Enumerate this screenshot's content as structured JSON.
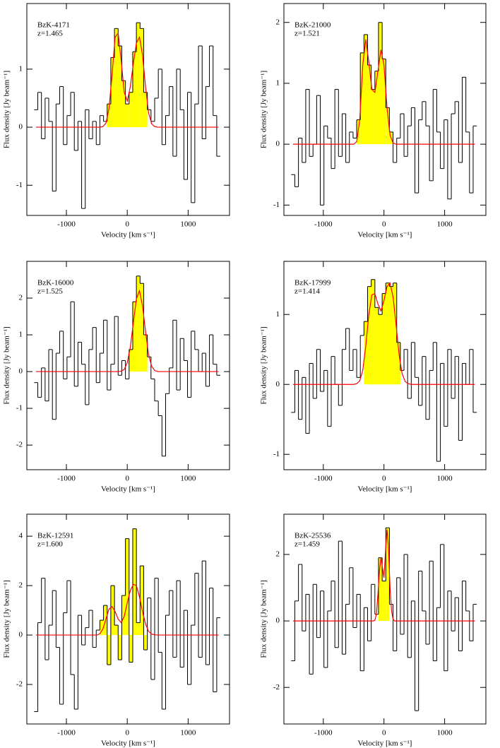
{
  "chart_data": [
    {
      "type": "step",
      "title": "BzK-4171",
      "subtitle": "z=1.465",
      "xlabel": "Velocity [km s⁻¹]",
      "ylabel": "Flux density [Jy beam⁻¹]",
      "color": "#000000",
      "xlim": [
        -1650,
        1680
      ],
      "xticks": [
        -1000,
        0,
        1000
      ],
      "ylim": [
        -1.52,
        2.13
      ],
      "yticks": [
        -1,
        0,
        1
      ],
      "x": [
        -1500,
        -1440,
        -1380,
        -1320,
        -1260,
        -1200,
        -1140,
        -1080,
        -1020,
        -960,
        -900,
        -840,
        -780,
        -720,
        -660,
        -600,
        -540,
        -480,
        -420,
        -360,
        -300,
        -240,
        -180,
        -120,
        -60,
        0,
        60,
        120,
        180,
        240,
        300,
        360,
        420,
        480,
        540,
        600,
        660,
        720,
        780,
        840,
        900,
        960,
        1020,
        1080,
        1140,
        1200,
        1260,
        1320,
        1380,
        1440,
        1500
      ],
      "values": [
        0.3,
        0.6,
        -0.2,
        0.5,
        0.1,
        -1.1,
        0.4,
        0.7,
        -0.3,
        0.2,
        0.6,
        -0.4,
        0.1,
        -1.4,
        0.3,
        -0.2,
        0.1,
        -0.3,
        0.2,
        0.1,
        0.4,
        1.2,
        1.7,
        1.4,
        0.8,
        0.4,
        0.6,
        1.3,
        1.8,
        1.7,
        0.6,
        0.3,
        0.1,
        0.5,
        1.0,
        -0.3,
        0.2,
        0.7,
        -0.5,
        1.0,
        0.3,
        -0.9,
        0.6,
        -1.3,
        0.4,
        1.4,
        -0.2,
        0.7,
        1.4,
        0.2,
        -0.5
      ],
      "fill_range": [
        -300,
        300
      ],
      "fill_color": "#ffff00",
      "fit": {
        "color": "#ff0000",
        "x": [
          -1500,
          -500,
          -450,
          -400,
          -350,
          -300,
          -250,
          -200,
          -150,
          -100,
          -50,
          0,
          50,
          100,
          150,
          200,
          250,
          300,
          350,
          400,
          450,
          500,
          1500
        ],
        "values": [
          0,
          0,
          0,
          0.01,
          0.07,
          0.32,
          0.9,
          1.55,
          1.62,
          1.15,
          0.6,
          0.45,
          0.7,
          1.1,
          1.45,
          1.55,
          1.25,
          0.7,
          0.25,
          0.06,
          0.01,
          0,
          0
        ]
      }
    },
    {
      "type": "step",
      "title": "BzK-21000",
      "subtitle": "z=1.521",
      "xlabel": "Velocity [km s⁻¹]",
      "ylabel": "Flux density [Jy beam⁻¹]",
      "color": "#000000",
      "xlim": [
        -1650,
        1680
      ],
      "xticks": [
        -1000,
        0,
        1000
      ],
      "ylim": [
        -1.17,
        2.31
      ],
      "yticks": [
        -1,
        0,
        1,
        2
      ],
      "x": [
        -1500,
        -1440,
        -1380,
        -1320,
        -1260,
        -1200,
        -1140,
        -1080,
        -1020,
        -960,
        -900,
        -840,
        -780,
        -720,
        -660,
        -600,
        -540,
        -480,
        -420,
        -360,
        -300,
        -240,
        -180,
        -120,
        -60,
        0,
        60,
        120,
        180,
        240,
        300,
        360,
        420,
        480,
        540,
        600,
        660,
        720,
        780,
        840,
        900,
        960,
        1020,
        1080,
        1140,
        1200,
        1260,
        1320,
        1380,
        1440,
        1500
      ],
      "values": [
        -0.5,
        -0.7,
        0.1,
        -0.3,
        0.9,
        -0.2,
        0.0,
        0.8,
        -1.0,
        0.3,
        0.1,
        -0.4,
        0.9,
        -0.2,
        0.5,
        -0.3,
        0.2,
        0.1,
        0.4,
        1.5,
        1.8,
        1.3,
        0.9,
        1.2,
        2.0,
        1.4,
        0.6,
        0.2,
        -0.3,
        0.1,
        0.5,
        -0.2,
        0.3,
        0.6,
        -0.8,
        0.4,
        0.7,
        0.3,
        -0.6,
        0.9,
        0.2,
        -0.4,
        0.4,
        -0.9,
        0.5,
        0.7,
        -0.3,
        1.1,
        0.2,
        -0.8,
        0.3
      ],
      "fill_range": [
        -450,
        150
      ],
      "fill_color": "#ffff00",
      "fit": {
        "color": "#ff0000",
        "x": [
          -1500,
          -500,
          -450,
          -400,
          -350,
          -300,
          -250,
          -200,
          -150,
          -100,
          -50,
          0,
          50,
          100,
          150,
          200,
          250,
          300,
          350,
          400,
          450,
          500,
          1500
        ],
        "values": [
          0,
          0,
          0.04,
          0.4,
          1.3,
          1.72,
          1.35,
          0.9,
          0.85,
          1.2,
          1.55,
          1.3,
          0.6,
          0.15,
          0.02,
          0,
          0,
          0,
          0,
          0,
          0,
          0,
          0
        ]
      }
    },
    {
      "type": "step",
      "title": "BzK-16000",
      "subtitle": "z=1.525",
      "xlabel": "Velocity [km s⁻¹]",
      "ylabel": "Flux density [Jy beam⁻¹]",
      "color": "#000000",
      "xlim": [
        -1650,
        1680
      ],
      "xticks": [
        -1000,
        0,
        1000
      ],
      "ylim": [
        -2.67,
        3.0
      ],
      "yticks": [
        -2,
        -1,
        0,
        1,
        2
      ],
      "x": [
        -1500,
        -1440,
        -1380,
        -1320,
        -1260,
        -1200,
        -1140,
        -1080,
        -1020,
        -960,
        -900,
        -840,
        -780,
        -720,
        -660,
        -600,
        -540,
        -480,
        -420,
        -360,
        -300,
        -240,
        -180,
        -120,
        -60,
        0,
        60,
        120,
        180,
        240,
        300,
        360,
        420,
        480,
        540,
        600,
        660,
        720,
        780,
        840,
        900,
        960,
        1020,
        1080,
        1140,
        1200,
        1260,
        1320,
        1380,
        1440,
        1500
      ],
      "values": [
        -0.3,
        -0.7,
        0.1,
        -0.8,
        0.6,
        -1.3,
        0.5,
        1.1,
        -0.2,
        0.4,
        1.9,
        -0.4,
        0.8,
        0.2,
        -0.9,
        0.6,
        1.2,
        -0.3,
        0.5,
        1.4,
        -0.5,
        0.2,
        1.5,
        -0.1,
        0.3,
        -0.2,
        0.6,
        1.9,
        2.6,
        2.4,
        1.0,
        0.4,
        -0.2,
        -0.8,
        -1.2,
        -2.3,
        -0.6,
        0.1,
        1.4,
        -0.5,
        0.9,
        0.3,
        -0.7,
        1.1,
        0.6,
        0.0,
        0.5,
        -0.4,
        1.0,
        0.2,
        -0.1
      ],
      "fill_range": [
        60,
        300
      ],
      "fill_color": "#ffff00",
      "fit": {
        "color": "#ff0000",
        "x": [
          -1500,
          -500,
          -450,
          -400,
          -350,
          -300,
          -250,
          -200,
          -150,
          -100,
          -50,
          0,
          50,
          100,
          150,
          200,
          250,
          300,
          350,
          400,
          450,
          500,
          1500
        ],
        "values": [
          0,
          0,
          0,
          0,
          0,
          0,
          0,
          0,
          0,
          0.01,
          0.06,
          0.24,
          0.66,
          1.33,
          1.98,
          2.2,
          1.8,
          1.1,
          0.46,
          0.15,
          0.03,
          0,
          0
        ]
      }
    },
    {
      "type": "step",
      "title": "BzK-17999",
      "subtitle": "z=1.414",
      "xlabel": "Velocity [km s⁻¹]",
      "ylabel": "Flux density [Jy beam⁻¹]",
      "color": "#000000",
      "xlim": [
        -1650,
        1680
      ],
      "xticks": [
        -1000,
        0,
        1000
      ],
      "ylim": [
        -1.22,
        1.76
      ],
      "yticks": [
        -1,
        0,
        1
      ],
      "x": [
        -1500,
        -1440,
        -1380,
        -1320,
        -1260,
        -1200,
        -1140,
        -1080,
        -1020,
        -960,
        -900,
        -840,
        -780,
        -720,
        -660,
        -600,
        -540,
        -480,
        -420,
        -360,
        -300,
        -240,
        -180,
        -120,
        -60,
        0,
        60,
        120,
        180,
        240,
        300,
        360,
        420,
        480,
        540,
        600,
        660,
        720,
        780,
        840,
        900,
        960,
        1020,
        1080,
        1140,
        1200,
        1260,
        1320,
        1380,
        1440,
        1500
      ],
      "values": [
        -0.4,
        0.2,
        -0.5,
        0.1,
        -0.7,
        0.3,
        -0.2,
        0.5,
        -0.1,
        0.2,
        -0.6,
        0.4,
        0.0,
        -0.3,
        0.5,
        0.8,
        0.2,
        0.5,
        0.1,
        0.7,
        0.9,
        1.4,
        1.5,
        1.1,
        1.0,
        1.3,
        1.45,
        1.4,
        1.45,
        0.6,
        0.2,
        0.5,
        -0.2,
        0.6,
        0.1,
        -0.3,
        0.4,
        -0.5,
        0.2,
        0.6,
        -1.1,
        0.3,
        -0.6,
        0.5,
        -0.2,
        0.4,
        -0.8,
        0.3,
        0.0,
        0.5,
        -0.4
      ],
      "fill_range": [
        -330,
        250
      ],
      "fill_color": "#ffff00",
      "fit": {
        "color": "#ff0000",
        "x": [
          -1500,
          -500,
          -450,
          -400,
          -350,
          -300,
          -250,
          -200,
          -150,
          -100,
          -50,
          0,
          50,
          100,
          150,
          200,
          250,
          300,
          350,
          400,
          450,
          500,
          1500
        ],
        "values": [
          0,
          0,
          0.01,
          0.05,
          0.2,
          0.55,
          1.0,
          1.28,
          1.3,
          1.15,
          1.05,
          1.2,
          1.4,
          1.45,
          1.25,
          0.85,
          0.42,
          0.15,
          0.04,
          0.01,
          0,
          0,
          0
        ]
      }
    },
    {
      "type": "step",
      "title": "BzK-12591",
      "subtitle": "z=1.600",
      "xlabel": "Velocity [km s⁻¹]",
      "ylabel": "Flux density [Jy beam⁻¹]",
      "color": "#000000",
      "xlim": [
        -1650,
        1680
      ],
      "xticks": [
        -1000,
        0,
        1000
      ],
      "ylim": [
        -3.6,
        4.89
      ],
      "yticks": [
        -2,
        0,
        2,
        4
      ],
      "x": [
        -1500,
        -1440,
        -1380,
        -1320,
        -1260,
        -1200,
        -1140,
        -1080,
        -1020,
        -960,
        -900,
        -840,
        -780,
        -720,
        -660,
        -600,
        -540,
        -480,
        -420,
        -360,
        -300,
        -240,
        -180,
        -120,
        -60,
        0,
        60,
        120,
        180,
        240,
        300,
        360,
        420,
        480,
        540,
        600,
        660,
        720,
        780,
        840,
        900,
        960,
        1020,
        1080,
        1140,
        1200,
        1260,
        1320,
        1380,
        1440,
        1500
      ],
      "values": [
        -3.1,
        0.5,
        2.3,
        -1.0,
        0.4,
        1.8,
        -0.5,
        -2.8,
        0.9,
        2.2,
        -1.6,
        -3.0,
        0.8,
        -0.4,
        0.3,
        1.0,
        -0.5,
        0.2,
        0.6,
        1.2,
        -1.2,
        2.0,
        0.4,
        -1.0,
        1.6,
        3.9,
        -1.1,
        4.3,
        0.5,
        2.8,
        -0.6,
        1.5,
        -1.8,
        2.3,
        -0.7,
        -3.0,
        0.8,
        1.8,
        -0.9,
        2.2,
        -1.3,
        1.0,
        -2.0,
        0.4,
        2.5,
        -0.9,
        3.0,
        -1.2,
        1.9,
        -2.3,
        0.7
      ],
      "fill_range": [
        -420,
        300
      ],
      "fill_color": "#ffff00",
      "fit": {
        "color": "#ff0000",
        "x": [
          -1500,
          -500,
          -450,
          -400,
          -350,
          -300,
          -250,
          -200,
          -150,
          -100,
          -50,
          0,
          50,
          100,
          150,
          200,
          250,
          300,
          350,
          400,
          450,
          500,
          1500
        ],
        "values": [
          0,
          0,
          0.05,
          0.25,
          0.65,
          1.05,
          1.15,
          0.95,
          0.65,
          0.5,
          0.75,
          1.3,
          1.8,
          2.05,
          2.0,
          1.55,
          0.95,
          0.45,
          0.15,
          0.04,
          0.01,
          0,
          0
        ]
      }
    },
    {
      "type": "step",
      "title": "BzK-25536",
      "subtitle": "z=1.459",
      "xlabel": "Velocity [km s⁻¹]",
      "ylabel": "Flux density [Jy beam⁻¹]",
      "color": "#000000",
      "xlim": [
        -1650,
        1680
      ],
      "xticks": [
        -1000,
        0,
        1000
      ],
      "ylim": [
        -3.1,
        3.21
      ],
      "yticks": [
        -2,
        0,
        2
      ],
      "x": [
        -1500,
        -1440,
        -1380,
        -1320,
        -1260,
        -1200,
        -1140,
        -1080,
        -1020,
        -960,
        -900,
        -840,
        -780,
        -720,
        -660,
        -600,
        -540,
        -480,
        -420,
        -360,
        -300,
        -240,
        -180,
        -120,
        -60,
        0,
        60,
        120,
        180,
        240,
        300,
        360,
        420,
        480,
        540,
        600,
        660,
        720,
        780,
        840,
        900,
        960,
        1020,
        1080,
        1140,
        1200,
        1260,
        1320,
        1380,
        1440,
        1500
      ],
      "values": [
        -1.2,
        0.6,
        1.7,
        -0.3,
        0.8,
        -1.6,
        1.1,
        -0.5,
        0.9,
        -1.4,
        0.3,
        1.2,
        -0.8,
        2.4,
        -1.0,
        0.5,
        1.6,
        -0.2,
        0.8,
        -1.5,
        0.4,
        -0.6,
        1.1,
        0.2,
        1.9,
        1.2,
        2.8,
        0.5,
        -0.9,
        1.3,
        -0.4,
        2.0,
        -1.1,
        0.6,
        -2.7,
        1.5,
        0.3,
        -0.7,
        1.8,
        -1.2,
        0.4,
        2.3,
        -1.5,
        0.9,
        -0.3,
        0.7,
        -0.9,
        1.2,
        0.3,
        -0.6,
        0.5
      ],
      "fill_range": [
        -90,
        100
      ],
      "fill_color": "#ffff00",
      "fit": {
        "color": "#ff0000",
        "x": [
          -1500,
          -250,
          -225,
          -200,
          -175,
          -150,
          -125,
          -100,
          -75,
          -50,
          -25,
          0,
          25,
          50,
          75,
          100,
          125,
          150,
          175,
          200,
          225,
          250,
          1500
        ],
        "values": [
          0,
          0,
          0,
          0,
          0,
          0.02,
          0.2,
          0.8,
          1.5,
          1.9,
          1.6,
          1.3,
          2.1,
          2.75,
          2.2,
          1.0,
          0.3,
          0.05,
          0,
          0,
          0,
          0,
          0
        ]
      }
    }
  ]
}
